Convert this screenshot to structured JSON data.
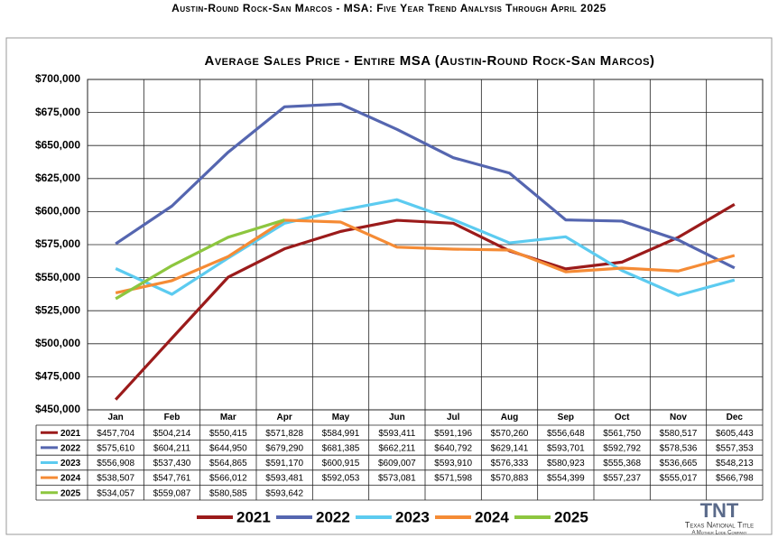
{
  "header": {
    "title": "Austin-Round Rock-San Marcos - MSA: Five Year Trend Analysis Through April 2025"
  },
  "chart_data": {
    "type": "line",
    "title": "Average Sales Price - Entire MSA (Austin-Round Rock-San Marcos)",
    "categories": [
      "Jan",
      "Feb",
      "Mar",
      "Apr",
      "May",
      "Jun",
      "Jul",
      "Aug",
      "Sep",
      "Oct",
      "Nov",
      "Dec"
    ],
    "ylim": [
      450000,
      700000
    ],
    "yticks": [
      {
        "value": 450000,
        "label": "$450,000"
      },
      {
        "value": 475000,
        "label": "$475,000"
      },
      {
        "value": 500000,
        "label": "$500,000"
      },
      {
        "value": 525000,
        "label": "$525,000"
      },
      {
        "value": 550000,
        "label": "$550,000"
      },
      {
        "value": 575000,
        "label": "$575,000"
      },
      {
        "value": 600000,
        "label": "$600,000"
      },
      {
        "value": 625000,
        "label": "$625,000"
      },
      {
        "value": 650000,
        "label": "$650,000"
      },
      {
        "value": 675000,
        "label": "$675,000"
      },
      {
        "value": 700000,
        "label": "$700,000"
      }
    ],
    "grid": true,
    "legend": "bottom",
    "series": [
      {
        "name": "2021",
        "color": "#9b1b1b",
        "values": [
          457704,
          504214,
          550415,
          571828,
          584991,
          593411,
          591196,
          570260,
          556648,
          561750,
          580517,
          605443
        ],
        "value_labels": [
          "$457,704",
          "$504,214",
          "$550,415",
          "$571,828",
          "$584,991",
          "$593,411",
          "$591,196",
          "$570,260",
          "$556,648",
          "$561,750",
          "$580,517",
          "$605,443"
        ]
      },
      {
        "name": "2022",
        "color": "#5566b0",
        "values": [
          575610,
          604211,
          644950,
          679290,
          681385,
          662211,
          640792,
          629141,
          593701,
          592792,
          578536,
          557353
        ],
        "value_labels": [
          "$575,610",
          "$604,211",
          "$644,950",
          "$679,290",
          "$681,385",
          "$662,211",
          "$640,792",
          "$629,141",
          "$593,701",
          "$592,792",
          "$578,536",
          "$557,353"
        ]
      },
      {
        "name": "2023",
        "color": "#5ccbf0",
        "values": [
          556908,
          537430,
          564865,
          591170,
          600915,
          609007,
          593910,
          576333,
          580923,
          555368,
          536665,
          548213
        ],
        "value_labels": [
          "$556,908",
          "$537,430",
          "$564,865",
          "$591,170",
          "$600,915",
          "$609,007",
          "$593,910",
          "$576,333",
          "$580,923",
          "$555,368",
          "$536,665",
          "$548,213"
        ]
      },
      {
        "name": "2024",
        "color": "#f58b35",
        "values": [
          538507,
          547761,
          566012,
          593481,
          592053,
          573081,
          571598,
          570883,
          554399,
          557237,
          555017,
          566798
        ],
        "value_labels": [
          "$538,507",
          "$547,761",
          "$566,012",
          "$593,481",
          "$592,053",
          "$573,081",
          "$571,598",
          "$570,883",
          "$554,399",
          "$557,237",
          "$555,017",
          "$566,798"
        ]
      },
      {
        "name": "2025",
        "color": "#8dc63f",
        "values": [
          534057,
          559087,
          580585,
          593642,
          null,
          null,
          null,
          null,
          null,
          null,
          null,
          null
        ],
        "value_labels": [
          "$534,057",
          "$559,087",
          "$580,585",
          "$593,642",
          null,
          null,
          null,
          null,
          null,
          null,
          null,
          null
        ]
      }
    ]
  },
  "logo": {
    "name": "TNT",
    "company": "Texas National Title",
    "tagline": "A Mother Lode Company"
  }
}
